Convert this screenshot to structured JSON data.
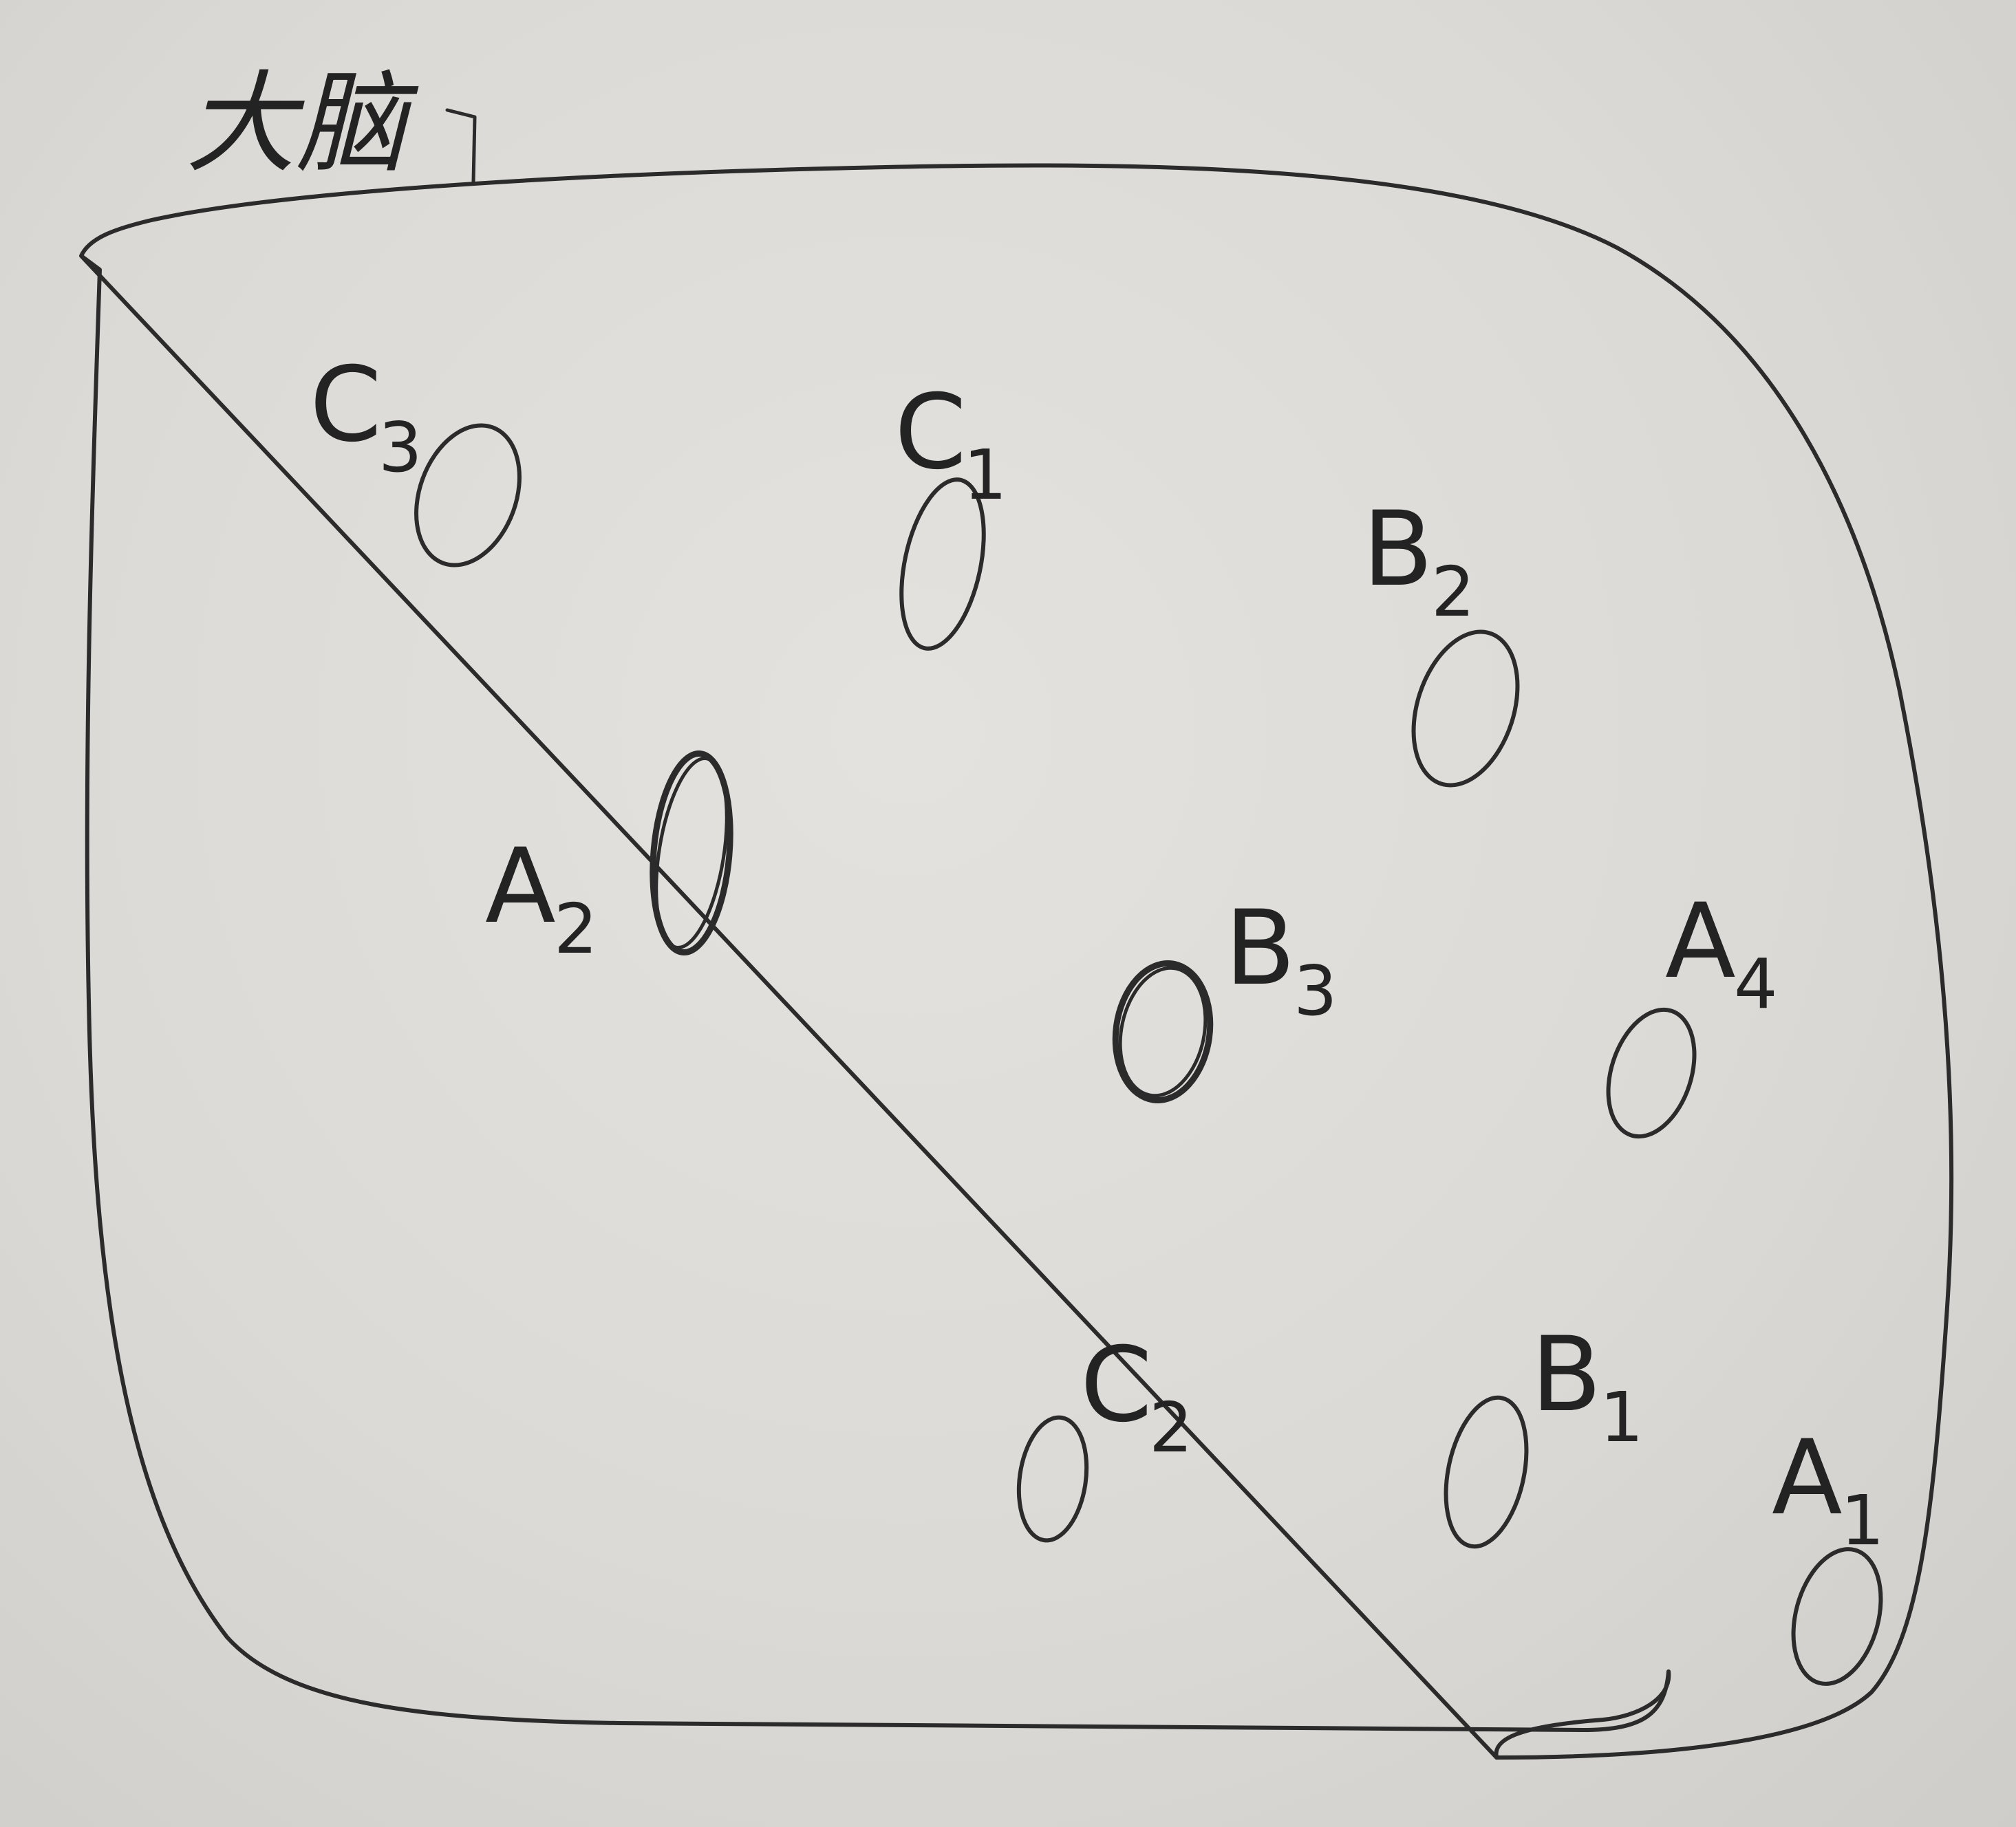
{
  "title": "大脑",
  "nodes": [
    {
      "id": "C3",
      "letter": "C",
      "sub": "3"
    },
    {
      "id": "C1",
      "letter": "C",
      "sub": "1"
    },
    {
      "id": "B2",
      "letter": "B",
      "sub": "2"
    },
    {
      "id": "A2",
      "letter": "A",
      "sub": "2"
    },
    {
      "id": "B3",
      "letter": "B",
      "sub": "3"
    },
    {
      "id": "A4",
      "letter": "A",
      "sub": "4"
    },
    {
      "id": "C2",
      "letter": "C",
      "sub": "2"
    },
    {
      "id": "B1",
      "letter": "B",
      "sub": "1"
    },
    {
      "id": "A1",
      "letter": "A",
      "sub": "1"
    }
  ]
}
